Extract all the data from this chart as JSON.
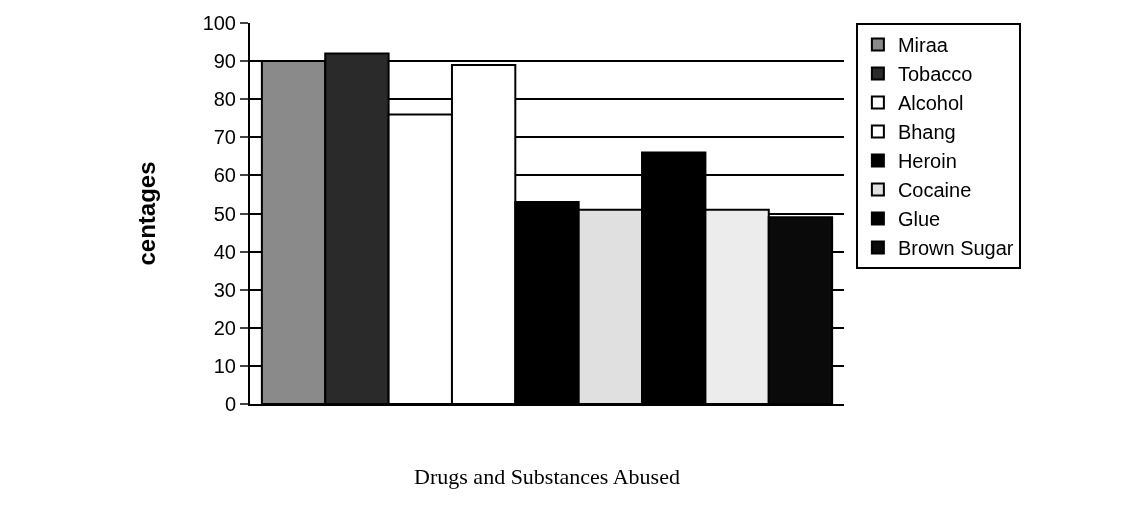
{
  "chart_data": {
    "type": "bar",
    "xlabel": "Drugs and Substances Abused",
    "ylabel": "centages",
    "categories": [
      null
    ],
    "series": [
      {
        "name": "Miraa",
        "color": "#8a8a8a",
        "values": [
          90
        ]
      },
      {
        "name": "Tobacco",
        "color": "#2a2a2a",
        "values": [
          92
        ]
      },
      {
        "name": "Alcohol",
        "color": "#ffffff",
        "values": [
          76
        ]
      },
      {
        "name": "Bhang",
        "color": "#ffffff",
        "values": [
          89
        ]
      },
      {
        "name": "Heroin",
        "color": "#000000",
        "values": [
          53
        ]
      },
      {
        "name": "Cocaine",
        "color": "#e0e0e0",
        "values": [
          51
        ]
      },
      {
        "name": "Glue",
        "color": "#000000",
        "values": [
          66
        ]
      },
      {
        "color": "#ececec",
        "values": [
          51
        ]
      },
      {
        "name": "Brown Sugar",
        "color": "#0a0a0a",
        "values": [
          49
        ]
      }
    ],
    "ylim": [
      0,
      100
    ],
    "yticks": [
      0,
      10,
      20,
      30,
      40,
      50,
      60,
      70,
      80,
      90,
      100
    ],
    "grid": "y",
    "legend": "right"
  }
}
